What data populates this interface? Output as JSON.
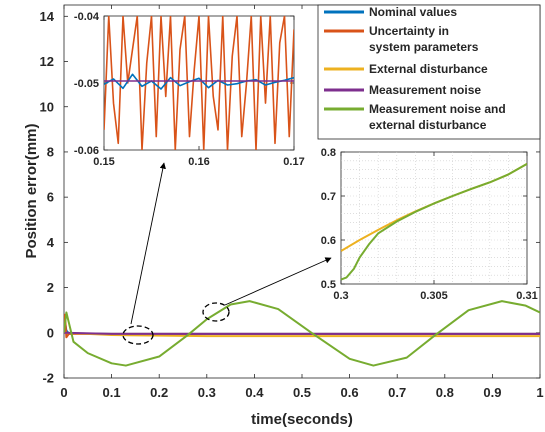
{
  "chart_data": {
    "type": "line",
    "main": {
      "xlabel": "time(seconds)",
      "ylabel": "Position error(mm)",
      "xlim": [
        0,
        1
      ],
      "ylim": [
        -2,
        14.5
      ],
      "xticks": [
        "0",
        "0.1",
        "0.2",
        "0.3",
        "0.4",
        "0.5",
        "0.6",
        "0.7",
        "0.8",
        "0.9",
        "1"
      ],
      "yticks": [
        "-2",
        "0",
        "2",
        "4",
        "6",
        "8",
        "10",
        "12",
        "14"
      ]
    },
    "legend": {
      "placement": "top-right",
      "entries": [
        {
          "label": "Nominal values",
          "color": "#0072BD"
        },
        {
          "label": "Uncertainty in system parameters",
          "color": "#D95319"
        },
        {
          "label": "External disturbance",
          "color": "#EDB120"
        },
        {
          "label": "Measurement noise",
          "color": "#7E2F8E"
        },
        {
          "label": "Measurement noise and external disturbance",
          "color": "#77AC30"
        }
      ]
    },
    "series": [
      {
        "name": "Nominal values",
        "color": "#0072BD",
        "x": [
          0,
          0.002,
          0.005,
          0.01,
          0.1,
          0.5,
          1
        ],
        "y": [
          0,
          0.5,
          0.1,
          -0.02,
          -0.05,
          -0.05,
          -0.05
        ]
      },
      {
        "name": "Uncertainty in system parameters",
        "color": "#D95319",
        "x": [
          0,
          0.002,
          0.005,
          0.01,
          0.1,
          0.5,
          1
        ],
        "y": [
          0,
          0.8,
          -0.2,
          -0.05,
          -0.05,
          -0.05,
          -0.05
        ]
      },
      {
        "name": "External disturbance",
        "color": "#EDB120",
        "x": [
          0,
          0.1,
          0.3,
          0.5,
          0.7,
          0.9,
          1
        ],
        "y": [
          0,
          -0.1,
          -0.15,
          -0.15,
          -0.15,
          -0.15,
          -0.15
        ]
      },
      {
        "name": "Measurement noise",
        "color": "#7E2F8E",
        "x": [
          0,
          0.1,
          0.3,
          0.5,
          0.7,
          0.9,
          1
        ],
        "y": [
          0,
          -0.05,
          -0.05,
          -0.05,
          -0.05,
          -0.05,
          -0.05
        ]
      },
      {
        "name": "Measurement noise and external disturbance",
        "color": "#77AC30",
        "x": [
          0,
          0.005,
          0.02,
          0.05,
          0.1,
          0.13,
          0.2,
          0.26,
          0.3,
          0.35,
          0.39,
          0.45,
          0.52,
          0.6,
          0.65,
          0.72,
          0.78,
          0.85,
          0.92,
          0.97,
          1
        ],
        "y": [
          0,
          0.9,
          -0.4,
          -0.9,
          -1.35,
          -1.45,
          -1.05,
          -0.1,
          0.6,
          1.25,
          1.4,
          1.05,
          0.0,
          -1.15,
          -1.45,
          -1.1,
          -0.1,
          1.0,
          1.4,
          1.2,
          0.9
        ]
      }
    ],
    "inset_left": {
      "xlim": [
        0.15,
        0.17
      ],
      "ylim": [
        -0.06,
        -0.04
      ],
      "xticks": [
        "0.15",
        "0.16",
        "0.17"
      ],
      "yticks": [
        "-0.04",
        "-0.05",
        "-0.06"
      ],
      "series": [
        {
          "name": "Uncertainty in system parameters",
          "color": "#D95319",
          "x": [
            0.15,
            0.1505,
            0.151,
            0.1515,
            0.152,
            0.1525,
            0.153,
            0.1535,
            0.154,
            0.1545,
            0.155,
            0.1555,
            0.156,
            0.1565,
            0.157,
            0.1575,
            0.158,
            0.1585,
            0.159,
            0.1595,
            0.16,
            0.1605,
            0.161,
            0.1615,
            0.162,
            0.1625,
            0.163,
            0.1635,
            0.164,
            0.1645,
            0.165,
            0.1655,
            0.166,
            0.1665,
            0.167,
            0.1675,
            0.168,
            0.1685,
            0.169,
            0.1695,
            0.17
          ],
          "y": [
            -0.057,
            -0.04,
            -0.053,
            -0.059,
            -0.04,
            -0.05,
            -0.045,
            -0.04,
            -0.06,
            -0.047,
            -0.04,
            -0.058,
            -0.04,
            -0.052,
            -0.04,
            -0.06,
            -0.045,
            -0.04,
            -0.058,
            -0.048,
            -0.04,
            -0.06,
            -0.04,
            -0.052,
            -0.057,
            -0.04,
            -0.06,
            -0.046,
            -0.04,
            -0.058,
            -0.05,
            -0.04,
            -0.06,
            -0.04,
            -0.053,
            -0.04,
            -0.059,
            -0.044,
            -0.04,
            -0.058,
            -0.042
          ]
        },
        {
          "name": "Nominal values",
          "color": "#0072BD",
          "x": [
            0.15,
            0.151,
            0.152,
            0.153,
            0.154,
            0.155,
            0.156,
            0.157,
            0.158,
            0.159,
            0.16,
            0.161,
            0.162,
            0.163,
            0.164,
            0.165,
            0.166,
            0.167,
            0.168,
            0.169,
            0.17
          ],
          "y": [
            -0.0502,
            -0.0494,
            -0.0508,
            -0.0487,
            -0.0505,
            -0.0497,
            -0.0509,
            -0.0492,
            -0.0504,
            -0.0498,
            -0.0493,
            -0.0507,
            -0.0496,
            -0.0503,
            -0.0501,
            -0.0497,
            -0.0495,
            -0.0503,
            -0.0499,
            -0.0496,
            -0.0492
          ]
        },
        {
          "name": "Measurement noise",
          "color": "#7E2F8E",
          "x": [
            0.15,
            0.17
          ],
          "y": [
            -0.0497,
            -0.0497
          ]
        }
      ]
    },
    "inset_right": {
      "xlim": [
        0.3,
        0.31
      ],
      "ylim": [
        0.5,
        0.8
      ],
      "xticks": [
        "0.3",
        "0.305",
        "0.31"
      ],
      "yticks": [
        "0.8",
        "0.7",
        "0.6",
        "0.5"
      ],
      "grid": true,
      "series": [
        {
          "name": "External disturbance",
          "color": "#EDB120",
          "x": [
            0.3,
            0.301,
            0.302,
            0.303,
            0.304,
            0.305,
            0.306,
            0.307,
            0.308,
            0.309,
            0.31
          ],
          "y": [
            0.575,
            0.6,
            0.623,
            0.645,
            0.665,
            0.683,
            0.7,
            0.716,
            0.731,
            0.749,
            0.773
          ]
        },
        {
          "name": "Measurement noise and external disturbance",
          "color": "#77AC30",
          "x": [
            0.3,
            0.3003,
            0.3007,
            0.301,
            0.3015,
            0.302,
            0.303,
            0.304,
            0.305,
            0.306,
            0.307,
            0.308,
            0.309,
            0.31
          ],
          "y": [
            0.51,
            0.515,
            0.535,
            0.56,
            0.59,
            0.615,
            0.642,
            0.664,
            0.683,
            0.7,
            0.716,
            0.731,
            0.749,
            0.773
          ]
        }
      ]
    }
  }
}
